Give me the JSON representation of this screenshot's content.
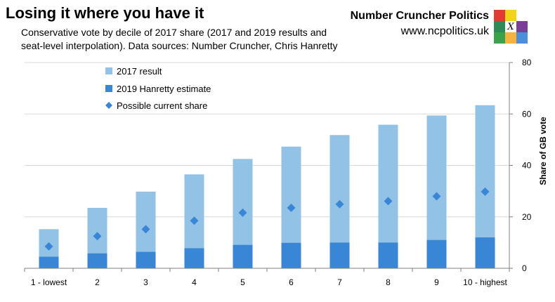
{
  "header": {
    "title": "Losing it where you have it",
    "subtitle": "Conservative vote by decile of 2017 share (2017 and 2019 results and seat-level interpolation). Data sources: Number Cruncher, Chris Hanretty",
    "brand_name": "Number Cruncher Politics",
    "brand_url": "www.ncpolitics.uk",
    "logo_letter": "X",
    "logo_colors": [
      "#e03c31",
      "#f2d21b",
      "#ffffff",
      "#2e8b57",
      "#ffffff",
      "#7b3f98",
      "#3aa34a",
      "#f5b342",
      "#4a90d9"
    ]
  },
  "chart_data": {
    "type": "bar",
    "categories": [
      "1 - lowest",
      "2",
      "3",
      "4",
      "5",
      "6",
      "7",
      "8",
      "9",
      "10 - highest"
    ],
    "series": [
      {
        "name": "2017 result",
        "kind": "bar",
        "color": "#92c2e6",
        "values": [
          15.2,
          23.5,
          29.8,
          36.5,
          42.5,
          47.3,
          51.8,
          55.8,
          59.4,
          63.4
        ]
      },
      {
        "name": "2019 Hanretty estimate",
        "kind": "bar",
        "color": "#3a86d6",
        "values": [
          4.5,
          5.8,
          6.4,
          7.8,
          9.1,
          9.9,
          10.0,
          10.0,
          11.0,
          12.0
        ]
      },
      {
        "name": "Possible current share",
        "kind": "marker",
        "color": "#3a86d6",
        "values": [
          8.5,
          12.5,
          15.2,
          18.5,
          21.6,
          23.5,
          24.9,
          26.1,
          28.0,
          29.8
        ]
      }
    ],
    "ylabel": "Share of GB vote",
    "ylim": [
      0,
      80
    ],
    "yticks": [
      0,
      20,
      40,
      60,
      80
    ],
    "y_axis_side": "right",
    "grid": true,
    "legend_position": "top-left"
  }
}
